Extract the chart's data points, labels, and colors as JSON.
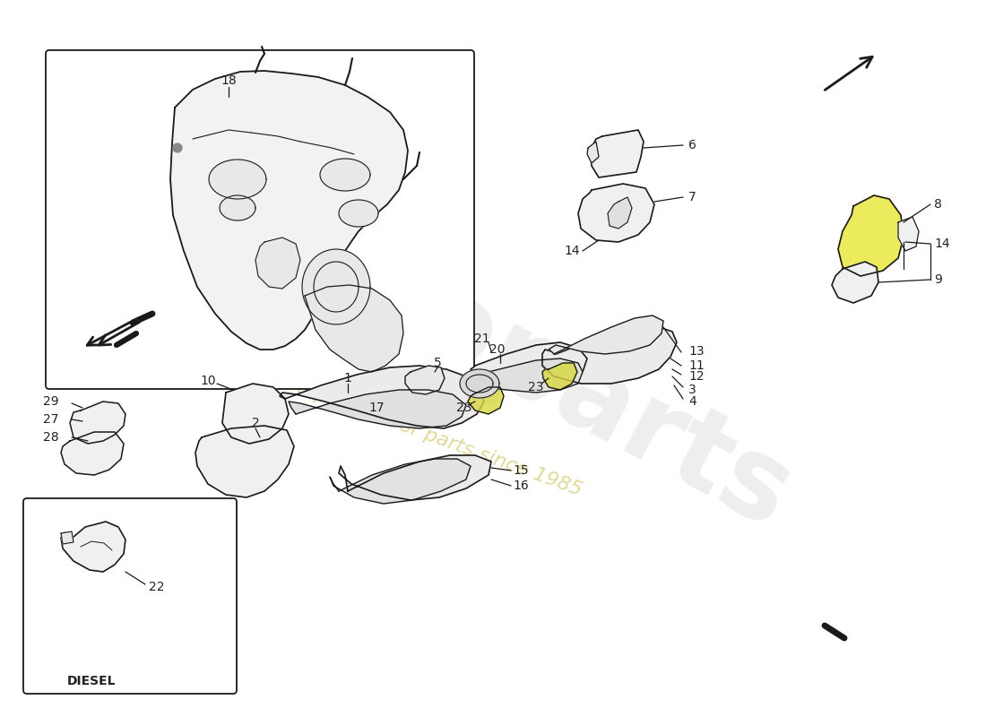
{
  "background_color": "#ffffff",
  "line_color": "#1a1a1a",
  "label_color": "#222222",
  "watermark_color1": "#c0c0c0",
  "watermark_color2": "#c8c07a",
  "yellow_highlight": "#e8e840",
  "diesel_label": "DIESEL",
  "fig_width": 11.0,
  "fig_height": 8.0,
  "dpi": 100,
  "xlim": [
    0,
    1100
  ],
  "ylim": [
    0,
    800
  ]
}
